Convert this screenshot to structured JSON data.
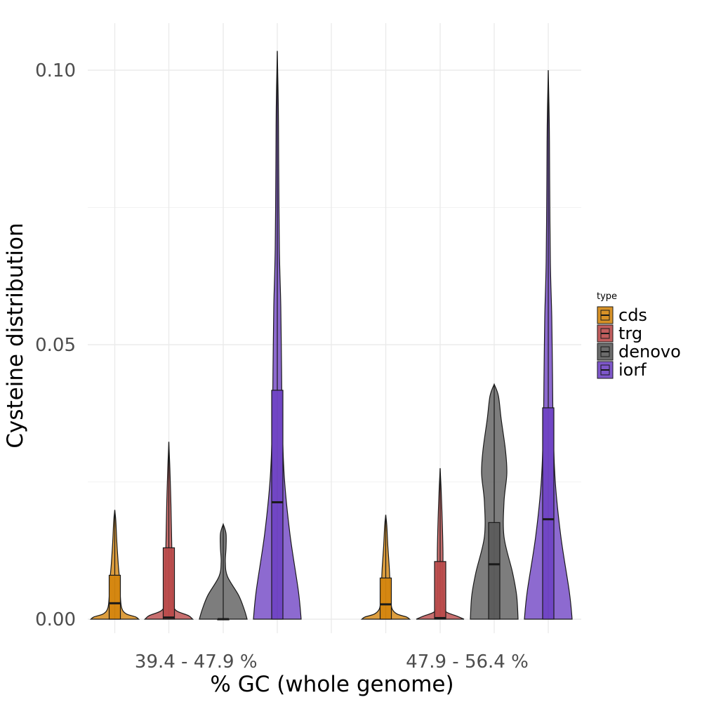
{
  "chart_data": {
    "type": "violin",
    "xlabel": "% GC (whole genome)",
    "ylabel": "Cysteine distribution",
    "ylim": [
      -0.003,
      0.1085
    ],
    "y_ticks": [
      "0.00",
      "0.05",
      "0.10"
    ],
    "y_tick_values": [
      0,
      0.05,
      0.1
    ],
    "grid": true,
    "legend_position": "right",
    "legend_title": "type",
    "categories": [
      "39.4 - 47.9 %",
      "47.9 - 56.4 %"
    ],
    "series": [
      {
        "name": "cds",
        "color": "#D4860F",
        "groups": [
          {
            "min": 0,
            "q1": 0,
            "median": 0.0029,
            "q3": 0.008,
            "max": 0.0199
          },
          {
            "min": 0,
            "q1": 0,
            "median": 0.0027,
            "q3": 0.0075,
            "max": 0.019
          }
        ]
      },
      {
        "name": "trg",
        "color": "#BA4B4B",
        "groups": [
          {
            "min": 0,
            "q1": 0,
            "median": 0.0003,
            "q3": 0.013,
            "max": 0.0323
          },
          {
            "min": 0,
            "q1": 0,
            "median": 0.0002,
            "q3": 0.0105,
            "max": 0.0275
          }
        ]
      },
      {
        "name": "denovo",
        "color": "#5C5C5C",
        "groups": [
          {
            "min": 0,
            "q1": 0,
            "median": 0,
            "q3": 0,
            "max": 0.0173
          },
          {
            "min": 0,
            "q1": 0,
            "median": 0.01,
            "q3": 0.0176,
            "max": 0.0428
          }
        ]
      },
      {
        "name": "iorf",
        "color": "#7045C4",
        "groups": [
          {
            "min": 0,
            "q1": 0,
            "median": 0.0213,
            "q3": 0.0417,
            "max": 0.1035
          },
          {
            "min": 0,
            "q1": 0,
            "median": 0.0182,
            "q3": 0.0385,
            "max": 0.1
          }
        ]
      }
    ]
  }
}
